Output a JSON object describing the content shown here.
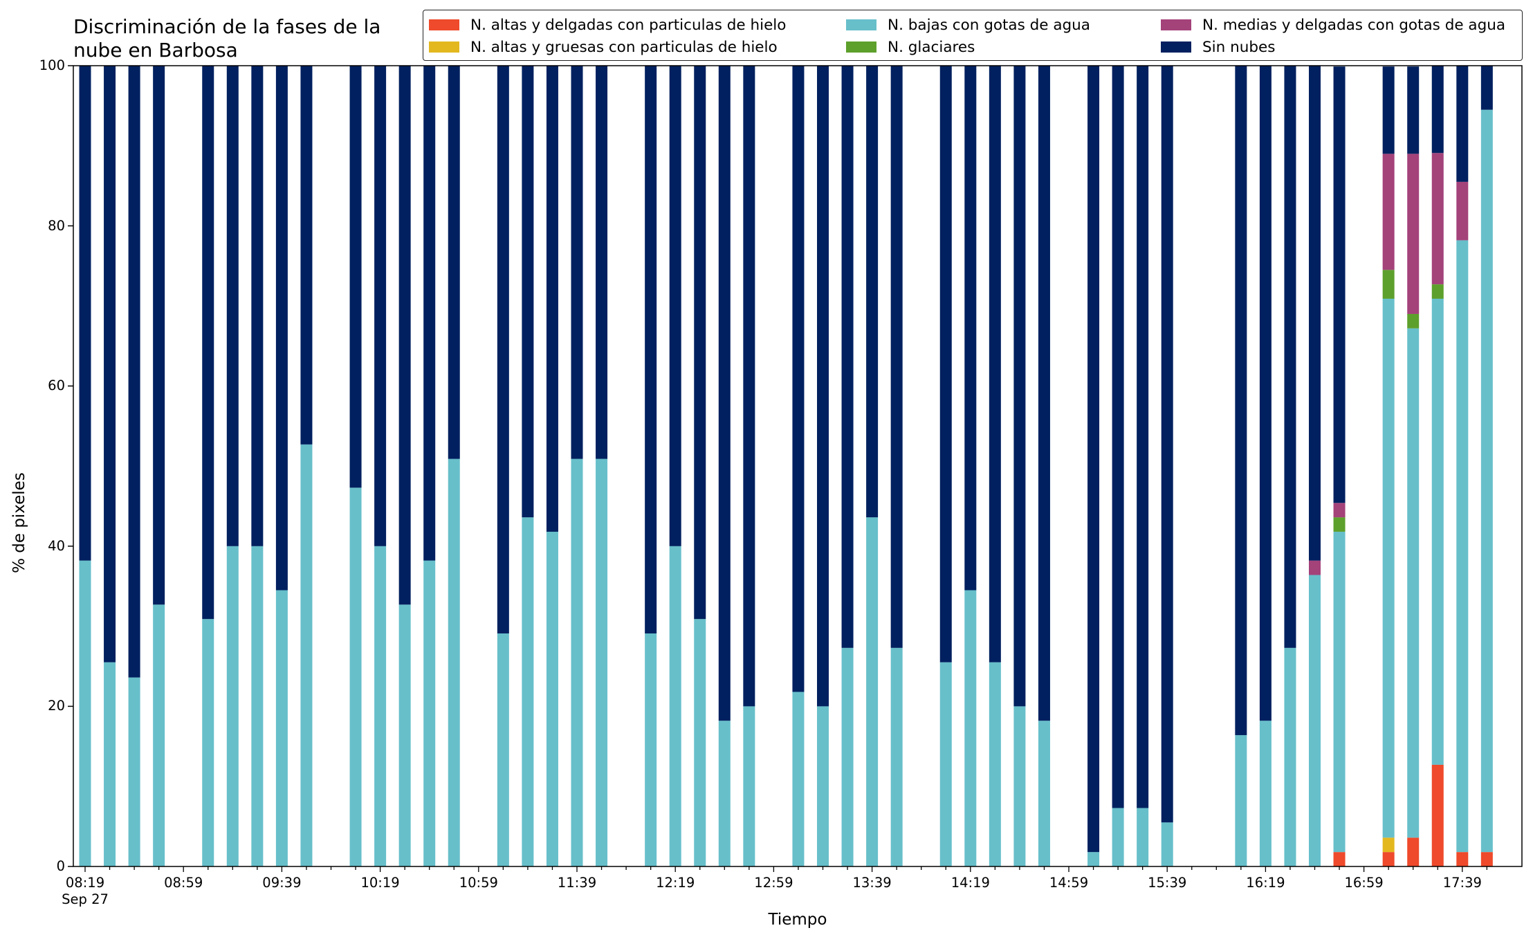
{
  "chart_data": {
    "type": "bar",
    "stacked": true,
    "title": "Discriminación de la fases de la\nnube en Barbosa",
    "xlabel": "Tiempo",
    "ylabel": "% de pixeles",
    "ylim": [
      0,
      100
    ],
    "yticks": [
      "0",
      "20",
      "40",
      "60",
      "80",
      "100"
    ],
    "grid": false,
    "legend_position": "top-right",
    "x_tick_labels": [
      "08:19",
      "08:59",
      "09:39",
      "10:19",
      "10:59",
      "11:39",
      "12:19",
      "12:59",
      "13:39",
      "14:19",
      "14:59",
      "15:39",
      "16:19",
      "16:59",
      "17:39"
    ],
    "x_start_label": "Sep 27",
    "interval_minutes": 10,
    "x": [
      "08:19",
      "08:29",
      "08:39",
      "08:49",
      "08:59",
      "09:09",
      "09:19",
      "09:29",
      "09:39",
      "09:49",
      "09:59",
      "10:09",
      "10:19",
      "10:29",
      "10:39",
      "10:49",
      "10:59",
      "11:09",
      "11:19",
      "11:29",
      "11:39",
      "11:49",
      "11:59",
      "12:09",
      "12:19",
      "12:29",
      "12:39",
      "12:49",
      "12:59",
      "13:09",
      "13:19",
      "13:29",
      "13:39",
      "13:49",
      "13:59",
      "14:09",
      "14:19",
      "14:29",
      "14:39",
      "14:49",
      "14:59",
      "15:09",
      "15:19",
      "15:29",
      "15:39",
      "15:49",
      "15:59",
      "16:09",
      "16:19",
      "16:29",
      "16:39",
      "16:49",
      "16:59",
      "17:09",
      "17:19",
      "17:29",
      "17:39",
      "17:49"
    ],
    "series": [
      {
        "name": "N. altas y delgadas con particulas de hielo",
        "color": "#ee4a2b",
        "values": [
          0,
          0,
          0,
          0,
          null,
          0,
          0,
          0,
          0,
          0,
          null,
          0,
          0,
          0,
          0,
          0,
          null,
          0,
          0,
          0,
          0,
          0,
          null,
          0,
          0,
          0,
          0,
          0,
          null,
          0,
          0,
          0,
          0,
          0,
          null,
          0,
          0,
          0,
          0,
          0,
          null,
          0,
          0,
          0,
          0,
          null,
          null,
          0,
          0,
          0,
          0,
          1.8,
          null,
          1.8,
          3.6,
          12.7,
          1.8,
          1.8
        ]
      },
      {
        "name": "N. altas y gruesas con particulas de hielo",
        "color": "#e3b81f",
        "values": [
          0,
          0,
          0,
          0,
          null,
          0,
          0,
          0,
          0,
          0,
          null,
          0,
          0,
          0,
          0,
          0,
          null,
          0,
          0,
          0,
          0,
          0,
          null,
          0,
          0,
          0,
          0,
          0,
          null,
          0,
          0,
          0,
          0,
          0,
          null,
          0,
          0,
          0,
          0,
          0,
          null,
          0,
          0,
          0,
          0,
          null,
          null,
          0,
          0,
          0,
          0,
          0,
          null,
          1.8,
          0,
          0,
          0,
          0
        ]
      },
      {
        "name": "N. bajas con gotas de agua",
        "color": "#67bfca",
        "values": [
          38.2,
          25.5,
          23.6,
          32.7,
          null,
          30.9,
          40.0,
          40.0,
          34.5,
          52.7,
          null,
          47.3,
          40.0,
          32.7,
          38.2,
          50.9,
          null,
          29.1,
          43.6,
          41.8,
          50.9,
          50.9,
          null,
          29.1,
          40.0,
          30.9,
          18.2,
          20.0,
          null,
          21.8,
          20.0,
          27.3,
          43.6,
          27.3,
          null,
          25.5,
          34.5,
          25.5,
          20.0,
          18.2,
          null,
          1.8,
          7.3,
          7.3,
          5.5,
          null,
          null,
          16.4,
          18.2,
          27.3,
          36.4,
          40.0,
          null,
          67.3,
          63.6,
          58.2,
          76.4,
          92.7
        ]
      },
      {
        "name": "N. glaciares",
        "color": "#5da02c",
        "values": [
          0,
          0,
          0,
          0,
          null,
          0,
          0,
          0,
          0,
          0,
          null,
          0,
          0,
          0,
          0,
          0,
          null,
          0,
          0,
          0,
          0,
          0,
          null,
          0,
          0,
          0,
          0,
          0,
          null,
          0,
          0,
          0,
          0,
          0,
          null,
          0,
          0,
          0,
          0,
          0,
          null,
          0,
          0,
          0,
          0,
          null,
          null,
          0,
          0,
          0,
          0,
          1.8,
          null,
          3.6,
          1.8,
          1.8,
          0,
          0
        ]
      },
      {
        "name": "N. medias y delgadas con gotas de agua",
        "color": "#a4427a",
        "values": [
          0,
          0,
          0,
          0,
          null,
          0,
          0,
          0,
          0,
          0,
          null,
          0,
          0,
          0,
          0,
          0,
          null,
          0,
          0,
          0,
          0,
          0,
          null,
          0,
          0,
          0,
          0,
          0,
          null,
          0,
          0,
          0,
          0,
          0,
          null,
          0,
          0,
          0,
          0,
          0,
          null,
          0,
          0,
          0,
          0,
          null,
          null,
          0,
          0,
          0,
          1.8,
          1.8,
          null,
          14.5,
          20.0,
          16.4,
          7.3,
          0
        ]
      },
      {
        "name": "Sin nubes",
        "color": "#00205f",
        "values": [
          61.8,
          74.5,
          76.4,
          67.3,
          null,
          69.1,
          60.0,
          60.0,
          65.5,
          47.3,
          null,
          52.7,
          60.0,
          67.3,
          61.8,
          49.1,
          null,
          70.9,
          56.4,
          58.2,
          49.1,
          49.1,
          null,
          70.9,
          60.0,
          69.1,
          81.8,
          80.0,
          null,
          78.2,
          80.0,
          72.7,
          56.4,
          72.7,
          null,
          74.5,
          65.5,
          74.5,
          80.0,
          81.8,
          null,
          98.2,
          92.7,
          92.7,
          94.5,
          null,
          null,
          83.6,
          81.8,
          72.7,
          61.8,
          54.5,
          null,
          10.9,
          10.9,
          10.9,
          14.5,
          5.5
        ]
      }
    ]
  }
}
